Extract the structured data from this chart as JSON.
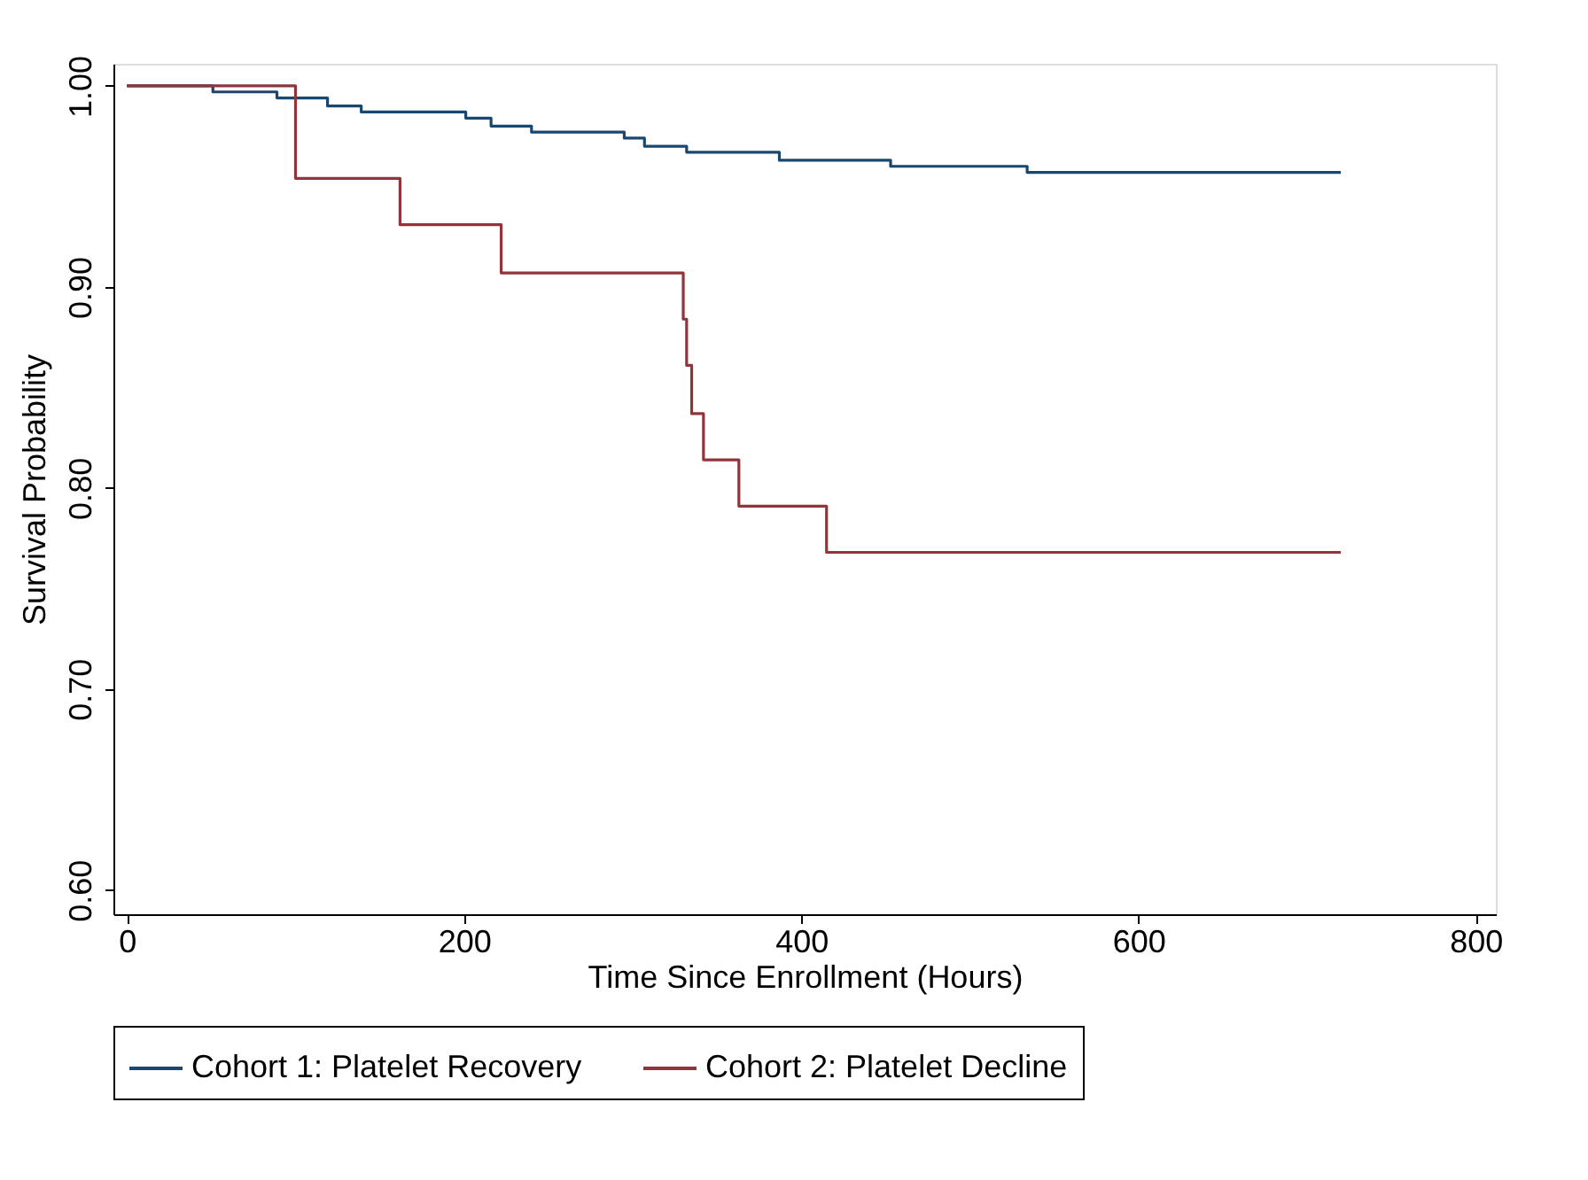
{
  "chart_data": {
    "type": "step",
    "xlabel": "Time Since Enrollment (Hours)",
    "ylabel": "Survival Probability",
    "xlim": [
      -8,
      812
    ],
    "ylim": [
      0.588,
      1.011
    ],
    "xticks": [
      0,
      200,
      400,
      600,
      800
    ],
    "yticks": [
      {
        "value": 0.6,
        "label": "0.60"
      },
      {
        "value": 0.7,
        "label": "0.70"
      },
      {
        "value": 0.8,
        "label": "0.80"
      },
      {
        "value": 0.9,
        "label": "0.90"
      },
      {
        "value": 1.0,
        "label": "1.00"
      }
    ],
    "grid": false,
    "legend": "bottom",
    "marker": "none",
    "line_style": "solid",
    "series": [
      {
        "name": "Cohort 1: Platelet Recovery",
        "color": "#1a476f",
        "x": [
          0,
          51,
          89,
          119,
          139,
          201,
          216,
          240,
          295,
          307,
          332,
          387,
          453,
          534,
          720
        ],
        "values": [
          1.0,
          0.997,
          0.994,
          0.99,
          0.987,
          0.984,
          0.98,
          0.977,
          0.974,
          0.97,
          0.967,
          0.963,
          0.96,
          0.957,
          0.957
        ]
      },
      {
        "name": "Cohort 2: Platelet Decline",
        "color": "#90353b",
        "x": [
          0,
          100,
          162,
          222,
          330,
          332,
          335,
          342,
          363,
          415,
          720
        ],
        "values": [
          1.0,
          0.954,
          0.931,
          0.907,
          0.884,
          0.861,
          0.837,
          0.814,
          0.791,
          0.768,
          0.768
        ]
      }
    ]
  }
}
